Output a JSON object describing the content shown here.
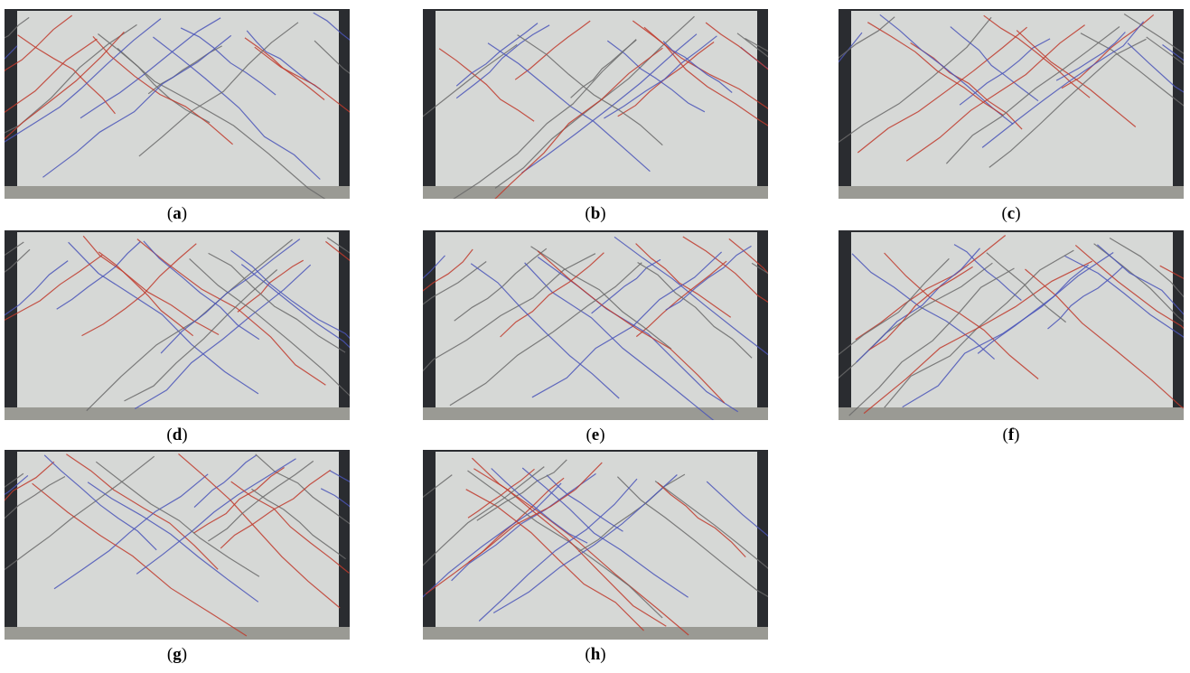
{
  "panels": [
    {
      "caption": [
        "(",
        "a",
        ")"
      ]
    },
    {
      "caption": [
        "(",
        "b",
        ")"
      ]
    },
    {
      "caption": [
        "(",
        "c",
        ")"
      ]
    },
    {
      "caption": [
        "(",
        "d",
        ")"
      ]
    },
    {
      "caption": [
        "(",
        "e",
        ")"
      ]
    },
    {
      "caption": [
        "(",
        "f",
        ")"
      ]
    },
    {
      "caption": [
        "(",
        "g",
        ")"
      ]
    },
    {
      "caption": [
        "(",
        "h",
        ")"
      ]
    }
  ]
}
